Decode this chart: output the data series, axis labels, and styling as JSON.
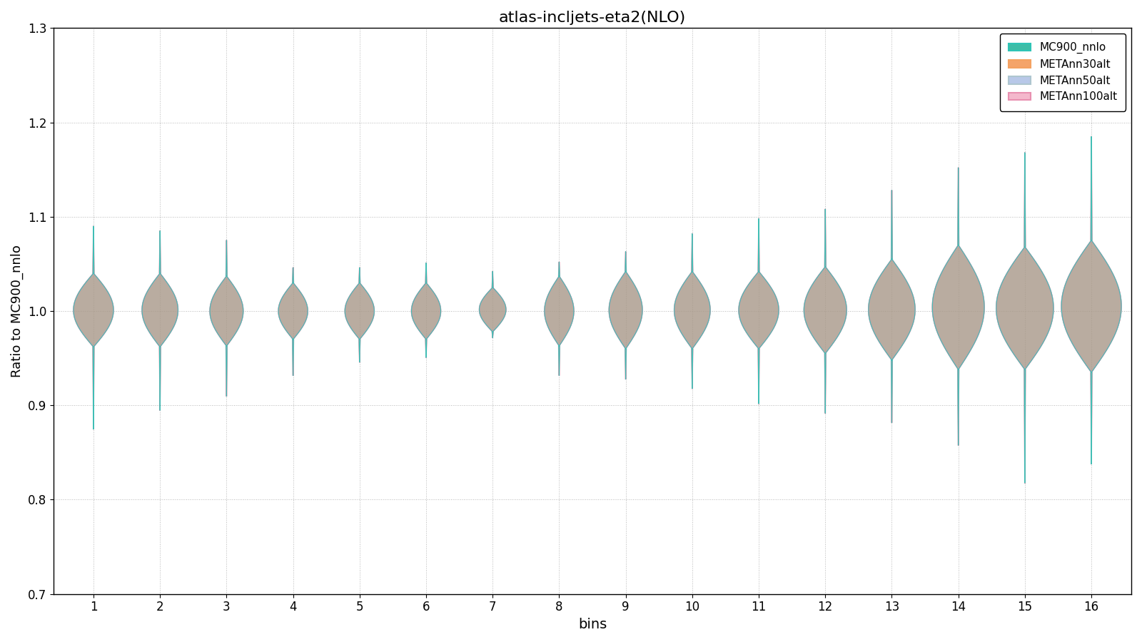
{
  "title": "atlas-incljets-eta2(NLO)",
  "xlabel": "bins",
  "ylabel": "Ratio to MC900_nnlo",
  "ylim": [
    0.7,
    1.3
  ],
  "yticks": [
    0.7,
    0.8,
    0.9,
    1.0,
    1.1,
    1.2,
    1.3
  ],
  "n_bins": 16,
  "legend_labels": [
    "MC900_nnlo",
    "METAnn30alt",
    "METAnn50alt",
    "METAnn100alt"
  ],
  "legend_colors_fill": [
    "#3dbda7",
    "#f4a46a",
    "#b8c8e8",
    "#f4b8cc"
  ],
  "legend_colors_edge": [
    "#2ec4b6",
    "#f4a261",
    "#aec6cf",
    "#e890b0"
  ],
  "violin_fill_color": "#a89888",
  "violin_edge_color_teal": "#2ec4b6",
  "violin_edge_color_pink": "#e890b0",
  "background_color": "#ffffff",
  "grid_color": "#888888",
  "body_upper": [
    1.04,
    1.04,
    1.037,
    1.03,
    1.03,
    1.03,
    1.025,
    1.037,
    1.042,
    1.042,
    1.042,
    1.047,
    1.055,
    1.07,
    1.068,
    1.075
  ],
  "body_lower": [
    0.962,
    0.962,
    0.963,
    0.97,
    0.97,
    0.97,
    0.978,
    0.963,
    0.96,
    0.96,
    0.96,
    0.955,
    0.948,
    0.938,
    0.938,
    0.935
  ],
  "whisker_upper": [
    1.09,
    1.085,
    1.075,
    1.046,
    1.046,
    1.051,
    1.042,
    1.052,
    1.063,
    1.082,
    1.098,
    1.108,
    1.128,
    1.152,
    1.168,
    1.185
  ],
  "whisker_lower": [
    0.875,
    0.895,
    0.91,
    0.932,
    0.946,
    0.951,
    0.972,
    0.932,
    0.928,
    0.918,
    0.902,
    0.892,
    0.882,
    0.858,
    0.818,
    0.838
  ],
  "body_max_width": [
    0.3,
    0.27,
    0.25,
    0.22,
    0.22,
    0.22,
    0.2,
    0.22,
    0.25,
    0.27,
    0.3,
    0.32,
    0.35,
    0.39,
    0.43,
    0.45
  ],
  "whisker_half_width": [
    0.008,
    0.008,
    0.008,
    0.008,
    0.008,
    0.008,
    0.008,
    0.008,
    0.008,
    0.008,
    0.008,
    0.008,
    0.008,
    0.008,
    0.008,
    0.008
  ]
}
